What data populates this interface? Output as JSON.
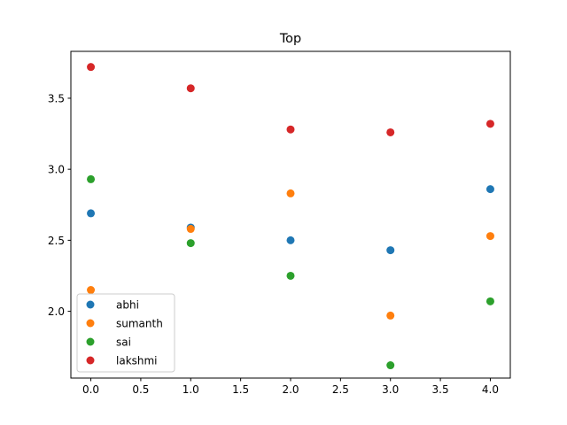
{
  "chart_data": {
    "type": "scatter",
    "title": "Top",
    "xlabel": "",
    "ylabel": "",
    "xlim": [
      -0.2,
      4.2
    ],
    "ylim": [
      1.53,
      3.83
    ],
    "xticks": [
      0.0,
      0.5,
      1.0,
      1.5,
      2.0,
      2.5,
      3.0,
      3.5,
      4.0
    ],
    "xtick_labels": [
      "0.0",
      "0.5",
      "1.0",
      "1.5",
      "2.0",
      "2.5",
      "3.0",
      "3.5",
      "4.0"
    ],
    "yticks": [
      2.0,
      2.5,
      3.0,
      3.5
    ],
    "ytick_labels": [
      "2.0",
      "2.5",
      "3.0",
      "3.5"
    ],
    "grid": false,
    "legend_position": "lower-left",
    "x": [
      0,
      1,
      2,
      3,
      4
    ],
    "series": [
      {
        "name": "abhi",
        "color": "#1f77b4",
        "values": [
          2.69,
          2.59,
          2.5,
          2.43,
          2.86
        ]
      },
      {
        "name": "sumanth",
        "color": "#ff7f0e",
        "values": [
          2.15,
          2.58,
          2.83,
          1.97,
          2.53
        ]
      },
      {
        "name": "sai",
        "color": "#2ca02c",
        "values": [
          2.93,
          2.48,
          2.25,
          1.62,
          2.07
        ]
      },
      {
        "name": "lakshmi",
        "color": "#d62728",
        "values": [
          3.72,
          3.57,
          3.28,
          3.26,
          3.32
        ]
      }
    ]
  }
}
